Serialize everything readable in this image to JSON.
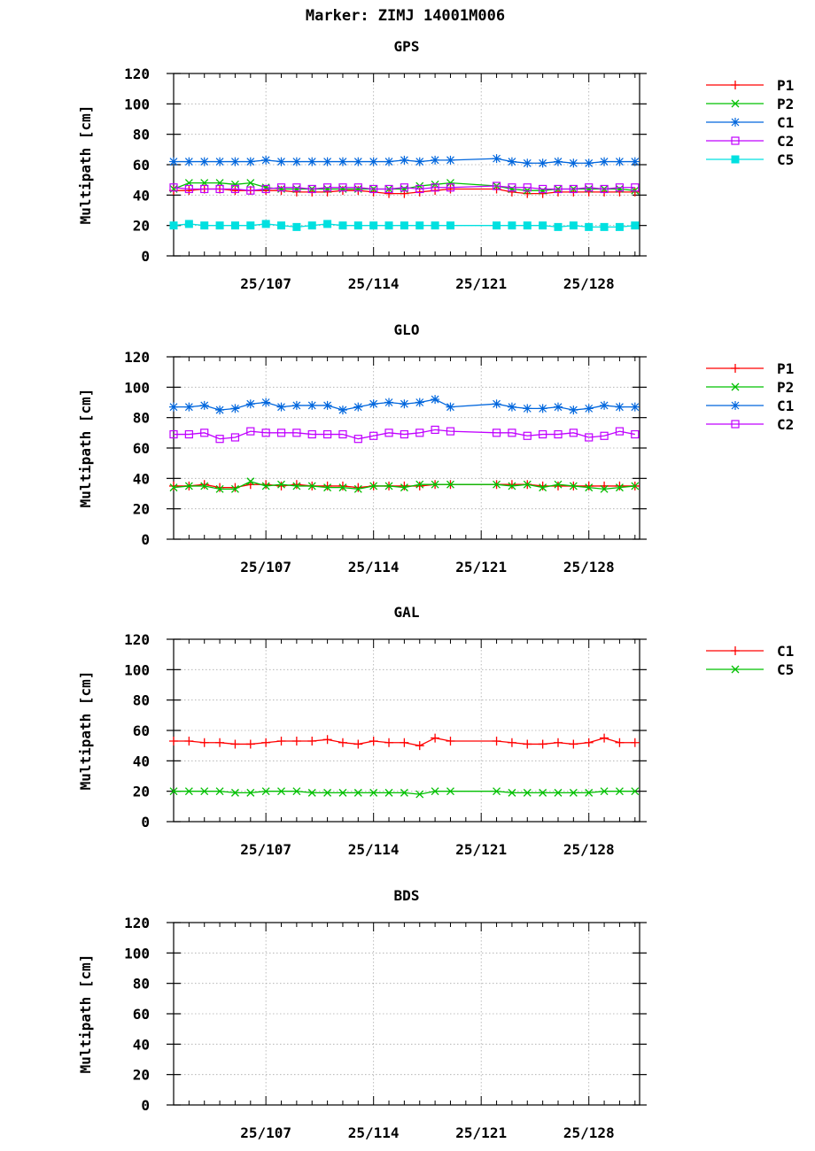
{
  "figure_title": "Marker: ZIMJ 14001M006",
  "chart_data": [
    {
      "type": "line",
      "title": "GPS",
      "ylabel": "Multipath [cm]",
      "ylim": [
        0,
        120
      ],
      "yticks": [
        0,
        20,
        40,
        60,
        80,
        100,
        120
      ],
      "xlim": [
        101,
        131.3
      ],
      "xticks": [
        {
          "v": 107,
          "label": "25/107"
        },
        {
          "v": 114,
          "label": "25/114"
        },
        {
          "v": 121,
          "label": "25/121"
        },
        {
          "v": 128,
          "label": "25/128"
        }
      ],
      "grid": true,
      "legend": "right",
      "series": [
        {
          "name": "P1",
          "color": "#ff0000",
          "marker": "plus",
          "x": [
            101,
            102,
            103,
            104,
            105,
            106,
            107,
            108,
            109,
            110,
            111,
            112,
            113,
            114,
            115,
            116,
            117,
            118,
            119,
            122,
            123,
            124,
            125,
            126,
            127,
            128,
            129,
            130,
            131
          ],
          "values": [
            43,
            43,
            44,
            44,
            43,
            43,
            43,
            43,
            42,
            42,
            42,
            43,
            43,
            42,
            41,
            41,
            42,
            43,
            44,
            44,
            42,
            41,
            41,
            42,
            42,
            42,
            42,
            42,
            42
          ]
        },
        {
          "name": "P2",
          "color": "#00c000",
          "marker": "x",
          "x": [
            101,
            102,
            103,
            104,
            105,
            106,
            107,
            108,
            109,
            110,
            111,
            112,
            113,
            114,
            115,
            116,
            117,
            118,
            119,
            122,
            123,
            124,
            125,
            126,
            127,
            128,
            129,
            130,
            131
          ],
          "values": [
            44,
            48,
            48,
            48,
            47,
            48,
            45,
            44,
            44,
            44,
            44,
            44,
            44,
            44,
            44,
            44,
            46,
            47,
            48,
            46,
            44,
            43,
            43,
            44,
            44,
            44,
            44,
            44,
            43
          ]
        },
        {
          "name": "C1",
          "color": "#0066dd",
          "marker": "star",
          "x": [
            101,
            102,
            103,
            104,
            105,
            106,
            107,
            108,
            109,
            110,
            111,
            112,
            113,
            114,
            115,
            116,
            117,
            118,
            119,
            122,
            123,
            124,
            125,
            126,
            127,
            128,
            129,
            130,
            131
          ],
          "values": [
            62,
            62,
            62,
            62,
            62,
            62,
            63,
            62,
            62,
            62,
            62,
            62,
            62,
            62,
            62,
            63,
            62,
            63,
            63,
            64,
            62,
            61,
            61,
            62,
            61,
            61,
            62,
            62,
            62
          ]
        },
        {
          "name": "C2",
          "color": "#c000ff",
          "marker": "square",
          "x": [
            101,
            102,
            103,
            104,
            105,
            106,
            107,
            108,
            109,
            110,
            111,
            112,
            113,
            114,
            115,
            116,
            117,
            118,
            119,
            122,
            123,
            124,
            125,
            126,
            127,
            128,
            129,
            130,
            131
          ],
          "values": [
            45,
            44,
            44,
            44,
            44,
            43,
            44,
            45,
            45,
            44,
            45,
            45,
            45,
            44,
            44,
            45,
            44,
            45,
            45,
            46,
            45,
            45,
            44,
            44,
            44,
            45,
            44,
            45,
            45
          ]
        },
        {
          "name": "C5",
          "color": "#00e0e0",
          "marker": "fsquare",
          "x": [
            101,
            102,
            103,
            104,
            105,
            106,
            107,
            108,
            109,
            110,
            111,
            112,
            113,
            114,
            115,
            116,
            117,
            118,
            119,
            122,
            123,
            124,
            125,
            126,
            127,
            128,
            129,
            130,
            131
          ],
          "values": [
            20,
            21,
            20,
            20,
            20,
            20,
            21,
            20,
            19,
            20,
            21,
            20,
            20,
            20,
            20,
            20,
            20,
            20,
            20,
            20,
            20,
            20,
            20,
            19,
            20,
            19,
            19,
            19,
            20
          ]
        }
      ]
    },
    {
      "type": "line",
      "title": "GLO",
      "ylabel": "Multipath [cm]",
      "ylim": [
        0,
        120
      ],
      "yticks": [
        0,
        20,
        40,
        60,
        80,
        100,
        120
      ],
      "xlim": [
        101,
        131.3
      ],
      "xticks": [
        {
          "v": 107,
          "label": "25/107"
        },
        {
          "v": 114,
          "label": "25/114"
        },
        {
          "v": 121,
          "label": "25/121"
        },
        {
          "v": 128,
          "label": "25/128"
        }
      ],
      "grid": true,
      "legend": "right",
      "series": [
        {
          "name": "P1",
          "color": "#ff0000",
          "marker": "plus",
          "x": [
            101,
            102,
            103,
            104,
            105,
            106,
            107,
            108,
            109,
            110,
            111,
            112,
            113,
            114,
            115,
            116,
            117,
            118,
            119,
            122,
            123,
            124,
            125,
            126,
            127,
            128,
            129,
            130,
            131
          ],
          "values": [
            35,
            35,
            36,
            34,
            34,
            36,
            36,
            35,
            36,
            35,
            35,
            35,
            34,
            35,
            35,
            35,
            35,
            36,
            36,
            36,
            36,
            36,
            35,
            35,
            35,
            35,
            35,
            35,
            35
          ]
        },
        {
          "name": "P2",
          "color": "#00c000",
          "marker": "x",
          "x": [
            101,
            102,
            103,
            104,
            105,
            106,
            107,
            108,
            109,
            110,
            111,
            112,
            113,
            114,
            115,
            116,
            117,
            118,
            119,
            122,
            123,
            124,
            125,
            126,
            127,
            128,
            129,
            130,
            131
          ],
          "values": [
            34,
            35,
            35,
            33,
            33,
            38,
            35,
            36,
            35,
            35,
            34,
            34,
            33,
            35,
            35,
            34,
            36,
            36,
            36,
            36,
            35,
            36,
            34,
            36,
            35,
            34,
            33,
            34,
            35
          ]
        },
        {
          "name": "C1",
          "color": "#0066dd",
          "marker": "star",
          "x": [
            101,
            102,
            103,
            104,
            105,
            106,
            107,
            108,
            109,
            110,
            111,
            112,
            113,
            114,
            115,
            116,
            117,
            118,
            119,
            122,
            123,
            124,
            125,
            126,
            127,
            128,
            129,
            130,
            131
          ],
          "values": [
            87,
            87,
            88,
            85,
            86,
            89,
            90,
            87,
            88,
            88,
            88,
            85,
            87,
            89,
            90,
            89,
            90,
            92,
            87,
            89,
            87,
            86,
            86,
            87,
            85,
            86,
            88,
            87,
            87
          ]
        },
        {
          "name": "C2",
          "color": "#c000ff",
          "marker": "square",
          "x": [
            101,
            102,
            103,
            104,
            105,
            106,
            107,
            108,
            109,
            110,
            111,
            112,
            113,
            114,
            115,
            116,
            117,
            118,
            119,
            122,
            123,
            124,
            125,
            126,
            127,
            128,
            129,
            130,
            131
          ],
          "values": [
            69,
            69,
            70,
            66,
            67,
            71,
            70,
            70,
            70,
            69,
            69,
            69,
            66,
            68,
            70,
            69,
            70,
            72,
            71,
            70,
            70,
            68,
            69,
            69,
            70,
            67,
            68,
            71,
            69
          ]
        }
      ]
    },
    {
      "type": "line",
      "title": "GAL",
      "ylabel": "Multipath [cm]",
      "ylim": [
        0,
        120
      ],
      "yticks": [
        0,
        20,
        40,
        60,
        80,
        100,
        120
      ],
      "xlim": [
        101,
        131.3
      ],
      "xticks": [
        {
          "v": 107,
          "label": "25/107"
        },
        {
          "v": 114,
          "label": "25/114"
        },
        {
          "v": 121,
          "label": "25/121"
        },
        {
          "v": 128,
          "label": "25/128"
        }
      ],
      "grid": true,
      "legend": "right",
      "series": [
        {
          "name": "C1",
          "color": "#ff0000",
          "marker": "plus",
          "x": [
            101,
            102,
            103,
            104,
            105,
            106,
            107,
            108,
            109,
            110,
            111,
            112,
            113,
            114,
            115,
            116,
            117,
            118,
            119,
            122,
            123,
            124,
            125,
            126,
            127,
            128,
            129,
            130,
            131
          ],
          "values": [
            53,
            53,
            52,
            52,
            51,
            51,
            52,
            53,
            53,
            53,
            54,
            52,
            51,
            53,
            52,
            52,
            50,
            55,
            53,
            53,
            52,
            51,
            51,
            52,
            51,
            52,
            55,
            52,
            52
          ]
        },
        {
          "name": "C5",
          "color": "#00c000",
          "marker": "x",
          "x": [
            101,
            102,
            103,
            104,
            105,
            106,
            107,
            108,
            109,
            110,
            111,
            112,
            113,
            114,
            115,
            116,
            117,
            118,
            119,
            122,
            123,
            124,
            125,
            126,
            127,
            128,
            129,
            130,
            131
          ],
          "values": [
            20,
            20,
            20,
            20,
            19,
            19,
            20,
            20,
            20,
            19,
            19,
            19,
            19,
            19,
            19,
            19,
            18,
            20,
            20,
            20,
            19,
            19,
            19,
            19,
            19,
            19,
            20,
            20,
            20
          ]
        }
      ]
    },
    {
      "type": "line",
      "title": "BDS",
      "ylabel": "Multipath [cm]",
      "ylim": [
        0,
        120
      ],
      "yticks": [
        0,
        20,
        40,
        60,
        80,
        100,
        120
      ],
      "xlim": [
        101,
        131.3
      ],
      "xticks": [
        {
          "v": 107,
          "label": "25/107"
        },
        {
          "v": 114,
          "label": "25/114"
        },
        {
          "v": 121,
          "label": "25/121"
        },
        {
          "v": 128,
          "label": "25/128"
        }
      ],
      "grid": true,
      "legend": "none",
      "series": []
    }
  ]
}
